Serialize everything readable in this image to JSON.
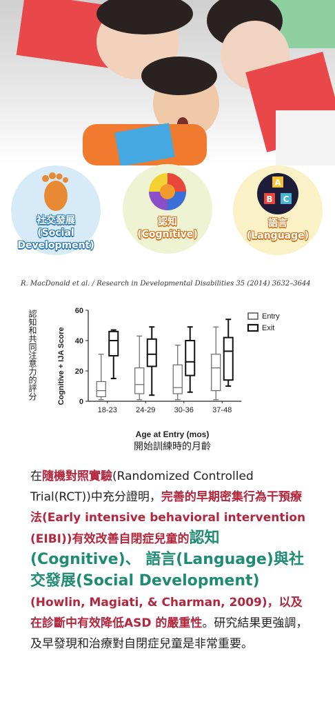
{
  "icons": [
    {
      "label_zh": "社交發展",
      "label_en_line1": "(Social",
      "label_en_line2": "Development)",
      "icon": "footprint-icon",
      "color": "#d6ebf7"
    },
    {
      "label_zh": "認知",
      "label_en_line1": "(Cognitive)",
      "label_en_line2": "",
      "icon": "colorful-sphere-icon",
      "color": "#eef4d3"
    },
    {
      "label_zh": "語言",
      "label_en_line1": "(Language)",
      "label_en_line2": "",
      "icon": "abc-blocks-icon",
      "color": "#fbf1c6"
    }
  ],
  "abc": {
    "a": "A",
    "b": "B",
    "c": "C"
  },
  "citation": "R. MacDonald et al. / Research in Developmental Disabilities 35 (2014) 3632–3644",
  "chart_data": {
    "type": "boxplot",
    "ylabel": "Cognitive + IJA Score",
    "ylabel_zh": "認知和共同注意力的評分",
    "xlabel": "Age at Entry (mos)",
    "xlabel_zh": "開始訓練時的月齡",
    "ylim": [
      0,
      60
    ],
    "yticks": [
      "0",
      "20",
      "40",
      "60"
    ],
    "categories": [
      "18-23",
      "24-29",
      "30-36",
      "37-48"
    ],
    "legend": "top-right",
    "series": [
      {
        "name": "Entry",
        "boxes": [
          {
            "min": 1,
            "q1": 3,
            "median": 7,
            "q3": 13,
            "max": 31
          },
          {
            "min": 1,
            "q1": 5,
            "median": 11,
            "q3": 22,
            "max": 43
          },
          {
            "min": 1,
            "q1": 5,
            "median": 9,
            "q3": 24,
            "max": 37
          },
          {
            "min": 1,
            "q1": 7,
            "median": 22,
            "q3": 31,
            "max": 49
          }
        ]
      },
      {
        "name": "Exit",
        "boxes": [
          {
            "min": 15,
            "q1": 30,
            "median": 40,
            "q3": 46,
            "max": 47
          },
          {
            "min": 4,
            "q1": 23,
            "median": 31,
            "q3": 41,
            "max": 49
          },
          {
            "min": 6,
            "q1": 17,
            "median": 26,
            "q3": 40,
            "max": 49
          },
          {
            "min": 10,
            "q1": 14,
            "median": 33,
            "q3": 42,
            "max": 54
          }
        ]
      }
    ]
  },
  "paragraph": {
    "p1": "在",
    "p2": "隨機對照實驗",
    "p3": "(Randomized Controlled Trial(RCT))中充分證明，",
    "p4": "完善的早期密集行為干預療法(Early intensive behavioral intervention (EIBI))有效改善自閉症兒童的",
    "p5": "認知 (Cognitive)、 語言(Language)與社交發展(Social Development)",
    "p6": " (Howlin, Magiati, & Charman, 2009)，以及在診斷中有效降低ASD 的嚴重性",
    "p7": "。研究結果更強調，及早發現和治療對自閉症兒童是非常重要。"
  }
}
